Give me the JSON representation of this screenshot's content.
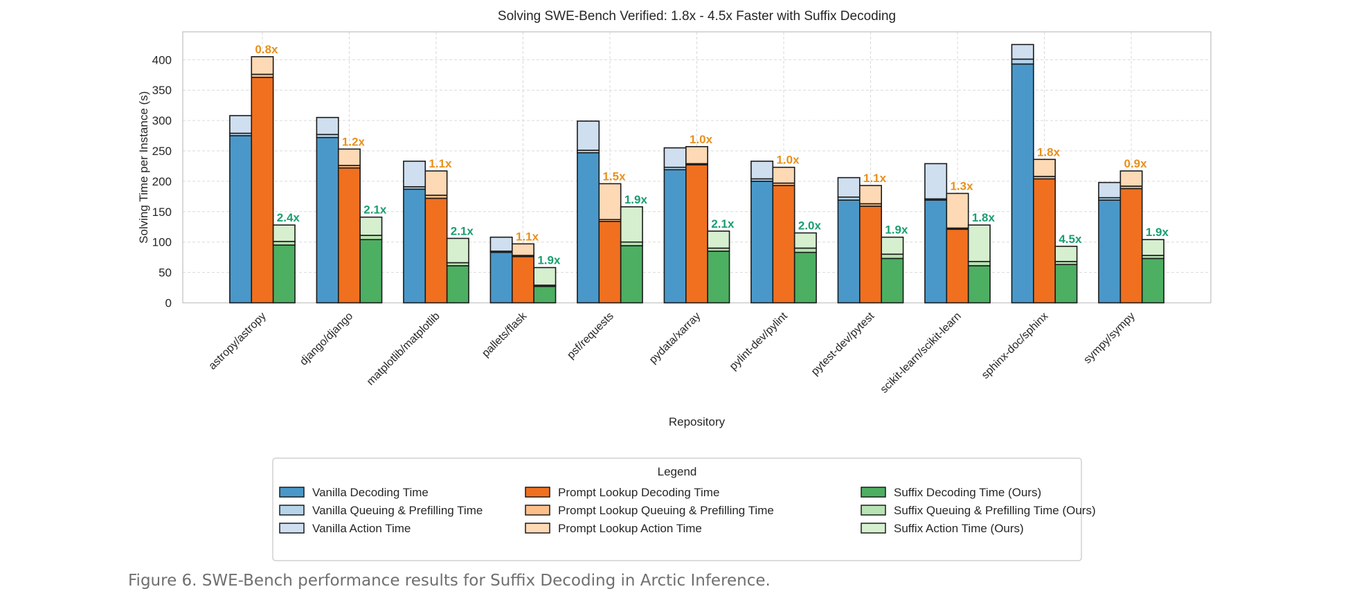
{
  "chart_data": {
    "type": "bar",
    "stacked": true,
    "title": "Solving SWE-Bench Verified: 1.8x - 4.5x Faster with Suffix Decoding",
    "xlabel": "Repository",
    "ylabel": "Solving Time per Instance (s)",
    "ylim": [
      0,
      445
    ],
    "yticks": [
      0,
      50,
      100,
      150,
      200,
      250,
      300,
      350,
      400
    ],
    "grid": true,
    "legend_title": "Legend",
    "legend_placement": "bottom-center",
    "categories": [
      "astropy/astropy",
      "django/django",
      "matplotlib/matplotlib",
      "pallets/flask",
      "psf/requests",
      "pydata/xarray",
      "pylint-dev/pylint",
      "pytest-dev/pytest",
      "scikit-learn/scikit-learn",
      "sphinx-doc/sphinx",
      "sympy/sympy"
    ],
    "methods": [
      {
        "key": "vanilla",
        "colors": [
          "#4a98c9",
          "#b5d4ea",
          "#cfdff0"
        ],
        "legend": [
          "Vanilla Decoding Time",
          "Vanilla Queuing & Prefilling Time",
          "Vanilla Action Time"
        ],
        "decode": [
          275,
          272,
          187,
          83,
          247,
          219,
          200,
          169,
          169,
          393,
          169
        ],
        "queue": [
          4,
          5,
          4,
          2,
          4,
          4,
          4,
          5,
          2,
          8,
          4
        ],
        "action": [
          29,
          28,
          42,
          23,
          48,
          32,
          29,
          32,
          58,
          24,
          25
        ]
      },
      {
        "key": "prompt_lookup",
        "colors": [
          "#f0701f",
          "#fdbf8a",
          "#fdd9b5"
        ],
        "legend": [
          "Prompt Lookup Decoding Time",
          "Prompt Lookup Queuing & Prefilling Time",
          "Prompt Lookup Action Time"
        ],
        "decode": [
          371,
          222,
          172,
          76,
          134,
          227,
          193,
          159,
          121,
          204,
          188
        ],
        "queue": [
          5,
          4,
          5,
          2,
          3,
          2,
          4,
          4,
          2,
          4,
          4
        ],
        "action": [
          29,
          27,
          40,
          19,
          59,
          28,
          26,
          30,
          57,
          28,
          25
        ],
        "speedup_labels": [
          "0.8x",
          "1.2x",
          "1.1x",
          "1.1x",
          "1.5x",
          "1.0x",
          "1.0x",
          "1.1x",
          "1.3x",
          "1.8x",
          "0.9x"
        ],
        "label_color": "#e8901b"
      },
      {
        "key": "suffix",
        "colors": [
          "#4daf62",
          "#b7e2b1",
          "#d5efcf"
        ],
        "legend": [
          "Suffix Decoding Time (Ours)",
          "Suffix Queuing & Prefilling Time (Ours)",
          "Suffix Action Time (Ours)"
        ],
        "decode": [
          95,
          104,
          61,
          27,
          94,
          85,
          83,
          73,
          61,
          63,
          73
        ],
        "queue": [
          6,
          7,
          5,
          2,
          6,
          5,
          7,
          7,
          7,
          5,
          5
        ],
        "action": [
          27,
          30,
          40,
          29,
          58,
          28,
          25,
          28,
          60,
          25,
          26
        ],
        "speedup_labels": [
          "2.4x",
          "2.1x",
          "2.1x",
          "1.9x",
          "1.9x",
          "2.1x",
          "2.0x",
          "1.9x",
          "1.8x",
          "4.5x",
          "1.9x"
        ],
        "label_color": "#1a9e6e"
      }
    ]
  },
  "caption": "Figure 6. SWE-Bench performance results for Suffix Decoding in Arctic Inference."
}
